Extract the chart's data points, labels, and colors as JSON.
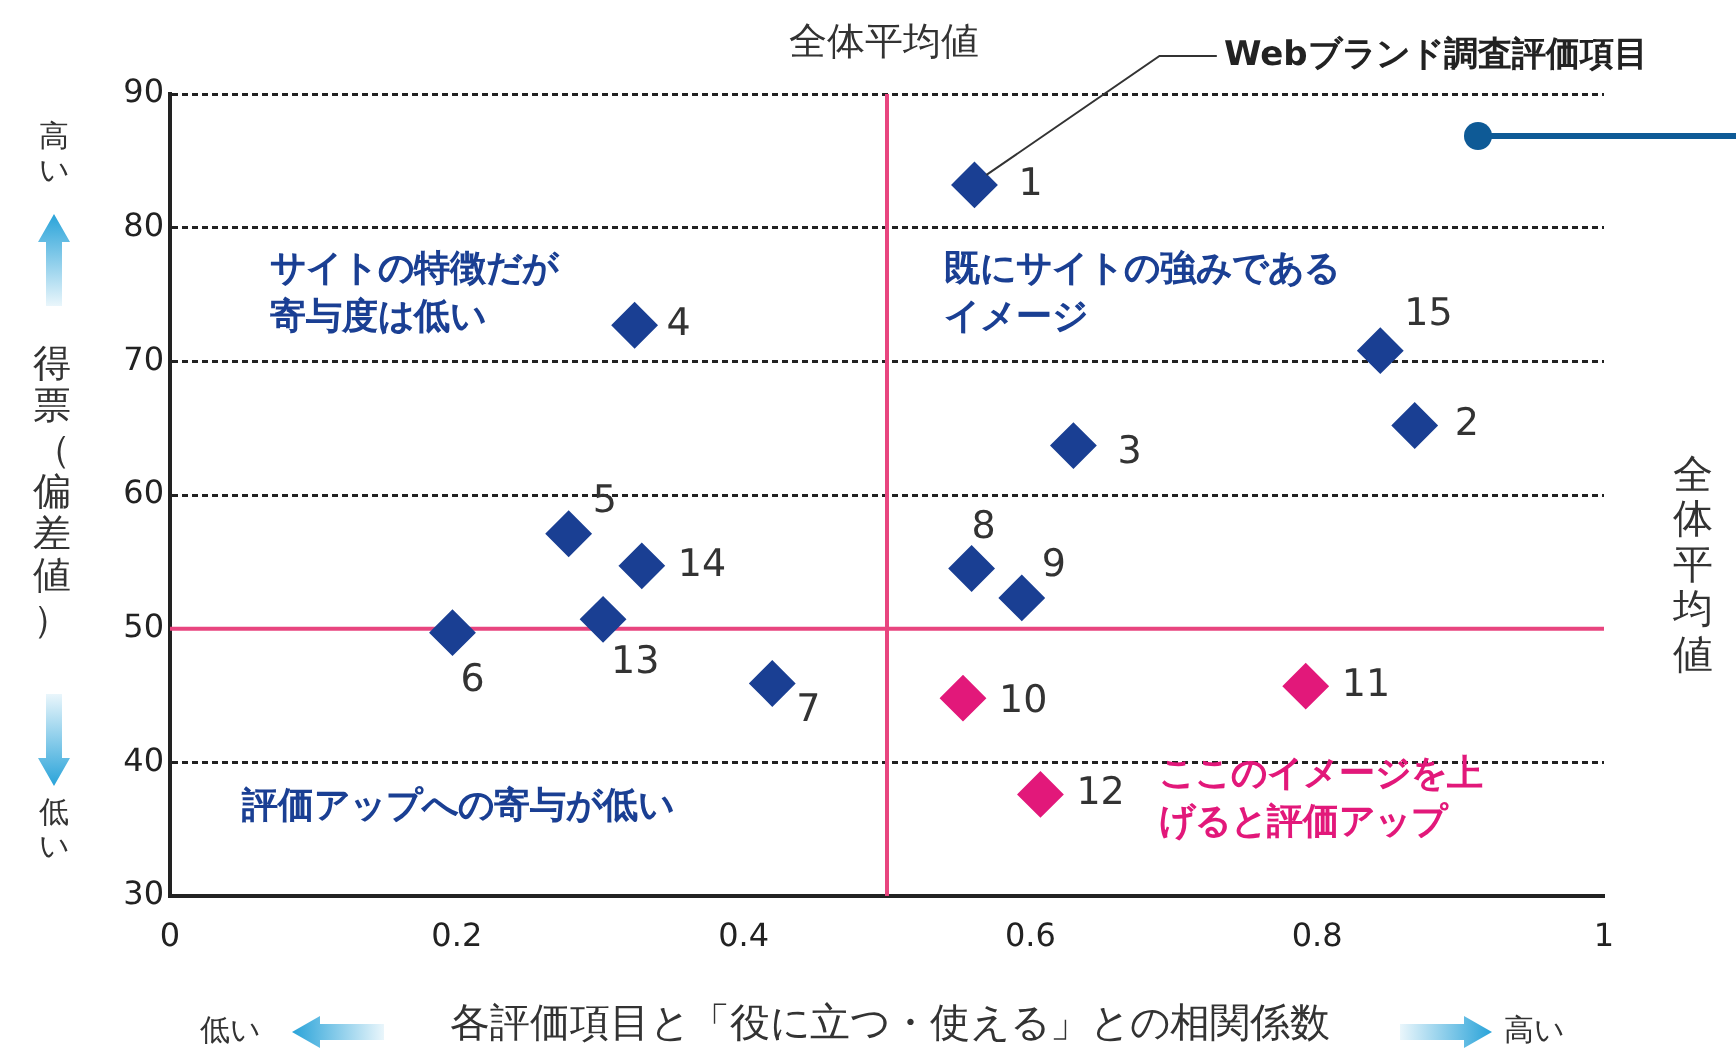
{
  "chart_data": {
    "type": "scatter",
    "xlabel": "各評価項目と「役に立つ・使える」との相関係数",
    "ylabel": "得票（偏差値）",
    "series": [
      {
        "color": "#1a3f93",
        "x": [
          0.561,
          0.868,
          0.63,
          0.324,
          0.278,
          0.197,
          0.42,
          0.559,
          0.594,
          0.302,
          0.329,
          0.844
        ],
        "values": [
          83.2,
          65.2,
          63.7,
          72.7,
          57.1,
          49.7,
          45.9,
          54.5,
          52.3,
          50.7,
          54.7,
          70.8
        ]
      },
      {
        "color": "#e2187a",
        "x": [
          0.553,
          0.792,
          0.607
        ],
        "values": [
          44.8,
          45.7,
          37.6
        ]
      }
    ],
    "xlim": [
      0,
      1
    ],
    "xticks": [
      0,
      0.2,
      0.4,
      0.6,
      0.8,
      1
    ],
    "ylim": [
      30,
      90
    ],
    "yticks": [
      30,
      40,
      50,
      60,
      70,
      80,
      90
    ],
    "grid": "y",
    "marker": "diamond",
    "ref_lines": [
      {
        "axis": "x",
        "value": 0.5,
        "label": "全体平均値",
        "color": "#e8457f"
      },
      {
        "axis": "y",
        "value": 50,
        "label": "全体平均値",
        "color": "#e8457f"
      }
    ],
    "annotations": [
      {
        "text": "Webブランド調査評価項目",
        "x": 0.561,
        "y": 83.2
      },
      {
        "text": "1",
        "x": 0.561,
        "y": 83.2
      },
      {
        "text": "2",
        "x": 0.868,
        "y": 65.2
      },
      {
        "text": "3",
        "x": 0.63,
        "y": 63.7
      },
      {
        "text": "4",
        "x": 0.324,
        "y": 72.7
      },
      {
        "text": "5",
        "x": 0.278,
        "y": 57.1
      },
      {
        "text": "6",
        "x": 0.197,
        "y": 49.7
      },
      {
        "text": "7",
        "x": 0.42,
        "y": 45.9
      },
      {
        "text": "8",
        "x": 0.559,
        "y": 54.5
      },
      {
        "text": "9",
        "x": 0.594,
        "y": 52.3
      },
      {
        "text": "10",
        "x": 0.553,
        "y": 44.8
      },
      {
        "text": "11",
        "x": 0.792,
        "y": 45.7
      },
      {
        "text": "12",
        "x": 0.607,
        "y": 37.6
      },
      {
        "text": "13",
        "x": 0.302,
        "y": 50.7
      },
      {
        "text": "14",
        "x": 0.329,
        "y": 54.7
      },
      {
        "text": "15",
        "x": 0.844,
        "y": 70.8
      },
      "サイトの特徴だが寄与度は低い",
      "既にサイトの強みであるイメージ",
      "評価アップへの寄与が低い",
      "ここのイメージを上げると評価アップ",
      "高い",
      "低い",
      "低い",
      "高い"
    ]
  }
}
